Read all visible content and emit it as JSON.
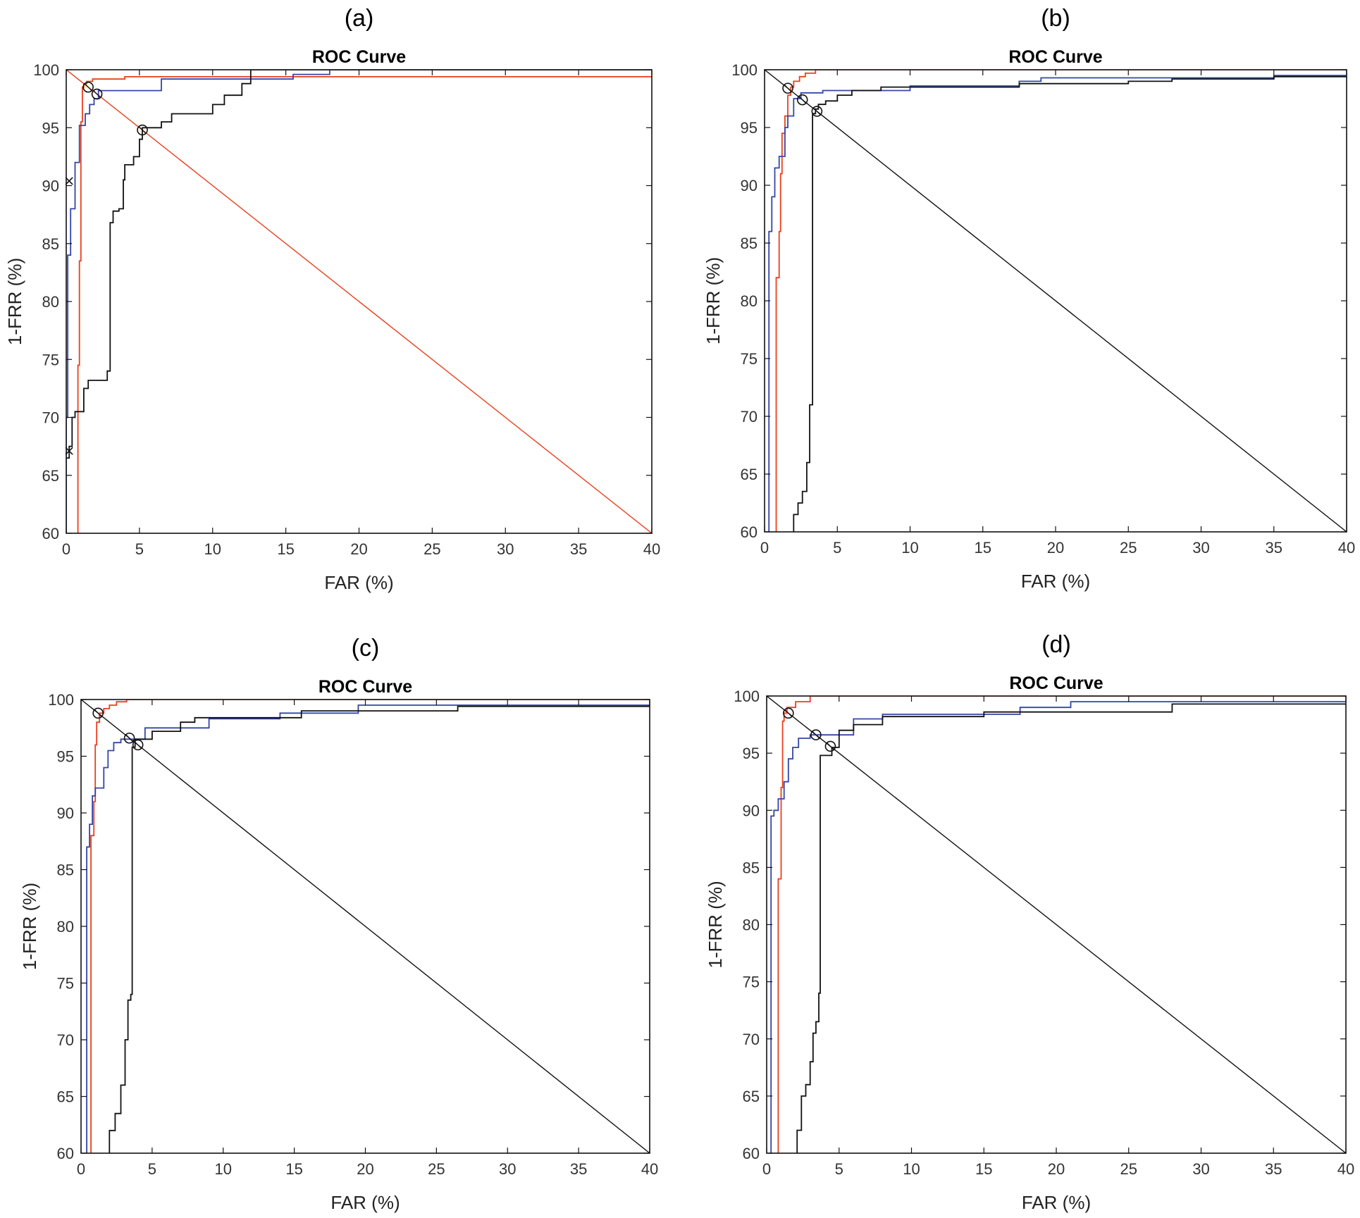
{
  "figure": {
    "description_free": true
  },
  "colors": {
    "roc_red": "#e8401c",
    "roc_blue": "#3345a8",
    "roc_black": "#111111"
  },
  "chart_data": [
    {
      "panel": "(a)",
      "type": "line",
      "title": "ROC Curve",
      "xlabel": "FAR (%)",
      "ylabel": "1-FRR (%)",
      "xlim": [
        0,
        40
      ],
      "ylim": [
        60,
        100
      ],
      "xticks": [
        "0",
        "5",
        "10",
        "15",
        "20",
        "25",
        "30",
        "35",
        "40"
      ],
      "yticks": [
        "60",
        "65",
        "70",
        "75",
        "80",
        "85",
        "90",
        "95",
        "100"
      ],
      "diagonal": {
        "color": "#e8401c",
        "from": [
          0,
          100
        ],
        "to": [
          40,
          60
        ]
      },
      "series": [
        {
          "name": "red",
          "color": "#e8401c",
          "x": [
            0.8,
            0.8,
            0.9,
            0.9,
            1.0,
            1.0,
            1.1,
            1.1,
            1.2,
            1.2,
            1.4,
            1.4,
            1.8,
            1.8,
            4.0,
            4.0,
            40
          ],
          "y": [
            60,
            74.5,
            74.5,
            83.5,
            83.5,
            95.5,
            95.5,
            98.5,
            98.5,
            98.8,
            98.8,
            99.0,
            99.0,
            99.2,
            99.2,
            99.4,
            99.4
          ]
        },
        {
          "name": "blue",
          "color": "#3345a8",
          "x": [
            0,
            0,
            0.1,
            0.1,
            0.3,
            0.3,
            0.6,
            0.6,
            0.9,
            0.9,
            1.3,
            1.3,
            1.6,
            1.6,
            1.9,
            1.9,
            2.2,
            2.2,
            6.5,
            6.5,
            15.5,
            15.5,
            18,
            18,
            40
          ],
          "y": [
            60,
            70,
            70,
            84,
            84,
            88,
            88,
            92,
            92,
            95.2,
            95.2,
            96.2,
            96.2,
            97.0,
            97.0,
            97.5,
            97.5,
            98.2,
            98.2,
            99.2,
            99.2,
            99.6,
            99.6,
            100,
            100
          ]
        },
        {
          "name": "black",
          "color": "#111111",
          "x": [
            0,
            0.2,
            0.2,
            0.4,
            0.4,
            0.6,
            0.6,
            1.2,
            1.2,
            1.5,
            1.5,
            2.8,
            2.8,
            3.0,
            3.0,
            3.2,
            3.2,
            3.6,
            3.6,
            3.9,
            3.9,
            4.0,
            4.0,
            4.6,
            4.6,
            5.0,
            5.0,
            5.2,
            5.2,
            6.5,
            6.5,
            7.2,
            7.2,
            10.0,
            10.0,
            10.8,
            10.8,
            12.0,
            12.0,
            12.6,
            12.6,
            40
          ],
          "y": [
            66.5,
            66.5,
            67.5,
            67.5,
            70,
            70,
            70.5,
            70.5,
            72.5,
            72.5,
            73.2,
            73.2,
            74,
            74,
            86.8,
            86.8,
            87.8,
            87.8,
            88,
            88,
            90.5,
            90.5,
            91.8,
            91.8,
            92.5,
            92.5,
            94,
            94,
            95,
            95,
            95.5,
            95.5,
            96.2,
            96.2,
            97.0,
            97.0,
            97.8,
            97.8,
            98.8,
            98.8,
            100,
            100
          ]
        }
      ],
      "eer_circles": [
        {
          "x": 1.5,
          "y": 98.5
        },
        {
          "x": 2.1,
          "y": 97.9
        },
        {
          "x": 5.2,
          "y": 94.8
        }
      ],
      "x_markers": [
        {
          "x": 0.2,
          "y": 90.4
        },
        {
          "x": 0.2,
          "y": 67.1
        }
      ]
    },
    {
      "panel": "(b)",
      "type": "line",
      "title": "ROC Curve",
      "xlabel": "FAR (%)",
      "ylabel": "1-FRR (%)",
      "xlim": [
        0,
        40
      ],
      "ylim": [
        60,
        100
      ],
      "xticks": [
        "0",
        "5",
        "10",
        "15",
        "20",
        "25",
        "30",
        "35",
        "40"
      ],
      "yticks": [
        "60",
        "65",
        "70",
        "75",
        "80",
        "85",
        "90",
        "95",
        "100"
      ],
      "diagonal": {
        "color": "#111111",
        "from": [
          0,
          100
        ],
        "to": [
          40,
          60
        ]
      },
      "series": [
        {
          "name": "red",
          "color": "#e8401c",
          "x": [
            0.8,
            0.8,
            1.0,
            1.0,
            1.1,
            1.1,
            1.2,
            1.2,
            1.4,
            1.4,
            1.6,
            1.6,
            1.8,
            1.8,
            2.0,
            2.0,
            2.4,
            2.4,
            2.8,
            2.8,
            3.5,
            3.5,
            40
          ],
          "y": [
            60,
            82,
            82,
            86,
            86,
            91,
            91,
            94.5,
            94.5,
            96,
            96,
            97.8,
            97.8,
            98.5,
            98.5,
            99.0,
            99.0,
            99.4,
            99.4,
            99.7,
            99.7,
            100,
            100
          ]
        },
        {
          "name": "blue",
          "color": "#3345a8",
          "x": [
            0.3,
            0.3,
            0.5,
            0.5,
            0.7,
            0.7,
            1.0,
            1.0,
            1.4,
            1.4,
            1.6,
            1.6,
            2.0,
            2.0,
            2.5,
            2.5,
            4.0,
            4.0,
            10,
            10,
            17.5,
            17.5,
            19,
            19,
            35,
            35,
            40
          ],
          "y": [
            60,
            86,
            86,
            89,
            89,
            91.5,
            91.5,
            92.5,
            92.5,
            95,
            95,
            96,
            96,
            97.5,
            97.5,
            98,
            98,
            98.2,
            98.2,
            98.6,
            98.6,
            99.0,
            99.0,
            99.3,
            99.3,
            99.5,
            99.5
          ]
        },
        {
          "name": "black",
          "color": "#111111",
          "x": [
            2.0,
            2.0,
            2.3,
            2.3,
            2.6,
            2.6,
            2.9,
            2.9,
            3.1,
            3.1,
            3.3,
            3.3,
            3.5,
            3.5,
            3.7,
            3.7,
            4.2,
            4.2,
            5.0,
            5.0,
            6.0,
            6.0,
            8.0,
            8.0,
            17.5,
            17.5,
            25,
            25,
            28,
            28,
            35,
            35,
            40
          ],
          "y": [
            60,
            61.5,
            61.5,
            62.5,
            62.5,
            63.5,
            63.5,
            66,
            66,
            71,
            71,
            96.2,
            96.2,
            96.6,
            96.6,
            97.0,
            97.0,
            97.3,
            97.3,
            97.8,
            97.8,
            98.2,
            98.2,
            98.5,
            98.5,
            98.8,
            98.8,
            99.0,
            99.0,
            99.2,
            99.2,
            99.4,
            99.4
          ]
        }
      ],
      "eer_circles": [
        {
          "x": 1.6,
          "y": 98.4
        },
        {
          "x": 2.6,
          "y": 97.4
        },
        {
          "x": 3.6,
          "y": 96.4
        }
      ],
      "x_markers": []
    },
    {
      "panel": "(c)",
      "type": "line",
      "title": "ROC Curve",
      "xlabel": "FAR (%)",
      "ylabel": "1-FRR (%)",
      "xlim": [
        0,
        40
      ],
      "ylim": [
        60,
        100
      ],
      "xticks": [
        "0",
        "5",
        "10",
        "15",
        "20",
        "25",
        "30",
        "35",
        "40"
      ],
      "yticks": [
        "60",
        "65",
        "70",
        "75",
        "80",
        "85",
        "90",
        "95",
        "100"
      ],
      "diagonal": {
        "color": "#111111",
        "from": [
          0,
          100
        ],
        "to": [
          40,
          60
        ]
      },
      "series": [
        {
          "name": "red",
          "color": "#e8401c",
          "x": [
            0.7,
            0.7,
            0.9,
            0.9,
            1.0,
            1.0,
            1.1,
            1.1,
            1.3,
            1.3,
            1.6,
            1.6,
            2.0,
            2.0,
            2.5,
            2.5,
            3.2,
            3.2,
            40
          ],
          "y": [
            60,
            88,
            88,
            91,
            91,
            96,
            96,
            98,
            98,
            98.8,
            98.8,
            99.2,
            99.2,
            99.5,
            99.5,
            99.8,
            99.8,
            100,
            100
          ]
        },
        {
          "name": "blue",
          "color": "#3345a8",
          "x": [
            0.4,
            0.4,
            0.6,
            0.6,
            0.8,
            0.8,
            1.0,
            1.0,
            1.6,
            1.6,
            1.9,
            1.9,
            2.3,
            2.3,
            2.8,
            2.8,
            4.5,
            4.5,
            9.0,
            9.0,
            14.0,
            14.0,
            19.5,
            19.5,
            40
          ],
          "y": [
            60,
            87,
            87,
            89,
            89,
            91.5,
            91.5,
            92.2,
            92.2,
            94,
            94,
            95.5,
            95.5,
            96.2,
            96.2,
            96.5,
            96.5,
            97.5,
            97.5,
            98.3,
            98.3,
            98.8,
            98.8,
            99.5,
            99.5
          ]
        },
        {
          "name": "black",
          "color": "#111111",
          "x": [
            2.0,
            2.0,
            2.4,
            2.4,
            2.8,
            2.8,
            3.1,
            3.1,
            3.3,
            3.3,
            3.5,
            3.5,
            3.6,
            3.6,
            3.8,
            3.8,
            5.0,
            5.0,
            7.0,
            7.0,
            8.0,
            8.0,
            15.5,
            15.5,
            26.5,
            26.5,
            40
          ],
          "y": [
            60,
            62,
            62,
            63.5,
            63.5,
            66,
            66,
            70,
            70,
            73.5,
            73.5,
            74,
            74,
            95.8,
            95.8,
            96.5,
            96.5,
            97.2,
            97.2,
            98.0,
            98.0,
            98.4,
            98.4,
            99.0,
            99.0,
            99.4,
            99.4
          ]
        }
      ],
      "eer_circles": [
        {
          "x": 1.2,
          "y": 98.8
        },
        {
          "x": 3.4,
          "y": 96.6
        },
        {
          "x": 4.0,
          "y": 96.0
        }
      ],
      "x_markers": []
    },
    {
      "panel": "(d)",
      "type": "line",
      "title": "ROC Curve",
      "xlabel": "FAR (%)",
      "ylabel": "1-FRR (%)",
      "xlim": [
        0,
        40
      ],
      "ylim": [
        60,
        100
      ],
      "xticks": [
        "0",
        "5",
        "10",
        "15",
        "20",
        "25",
        "30",
        "35",
        "40"
      ],
      "yticks": [
        "60",
        "65",
        "70",
        "75",
        "80",
        "85",
        "90",
        "95",
        "100"
      ],
      "diagonal": {
        "color": "#111111",
        "from": [
          0,
          100
        ],
        "to": [
          40,
          60
        ]
      },
      "series": [
        {
          "name": "red",
          "color": "#e8401c",
          "x": [
            0.8,
            0.8,
            1.0,
            1.0,
            1.1,
            1.1,
            1.2,
            1.2,
            1.4,
            1.4,
            2.0,
            2.0,
            3.0,
            3.0,
            40
          ],
          "y": [
            60,
            84,
            84,
            92,
            92,
            97.8,
            97.8,
            98.5,
            98.5,
            99.0,
            99.0,
            99.5,
            99.5,
            100,
            100
          ]
        },
        {
          "name": "blue",
          "color": "#3345a8",
          "x": [
            0.3,
            0.3,
            0.5,
            0.5,
            0.8,
            0.8,
            1.2,
            1.2,
            1.5,
            1.5,
            1.8,
            1.8,
            2.2,
            2.2,
            3.0,
            3.0,
            6.0,
            6.0,
            8.0,
            8.0,
            17.5,
            17.5,
            21,
            21,
            40
          ],
          "y": [
            60,
            89.5,
            89.5,
            90,
            90,
            91,
            91,
            92.5,
            92.5,
            94.5,
            94.5,
            95.5,
            95.5,
            96.3,
            96.3,
            96.6,
            96.6,
            98,
            98,
            98.4,
            98.4,
            99.0,
            99.0,
            99.5,
            99.5
          ]
        },
        {
          "name": "black",
          "color": "#111111",
          "x": [
            2.1,
            2.1,
            2.4,
            2.4,
            2.7,
            2.7,
            3.0,
            3.0,
            3.2,
            3.2,
            3.4,
            3.4,
            3.6,
            3.6,
            3.7,
            3.7,
            4.5,
            4.5,
            5.0,
            5.0,
            6.0,
            6.0,
            8.0,
            8.0,
            15.0,
            15.0,
            28.0,
            28.0,
            40
          ],
          "y": [
            60,
            62,
            62,
            65,
            65,
            66,
            66,
            68,
            68,
            70.5,
            70.5,
            71.5,
            71.5,
            74,
            74,
            94.8,
            94.8,
            95.5,
            95.5,
            97.0,
            97.0,
            97.5,
            97.5,
            98.2,
            98.2,
            98.6,
            98.6,
            99.3,
            99.3
          ]
        }
      ],
      "eer_circles": [
        {
          "x": 1.5,
          "y": 98.5
        },
        {
          "x": 3.4,
          "y": 96.6
        },
        {
          "x": 4.4,
          "y": 95.6
        }
      ],
      "x_markers": []
    }
  ]
}
